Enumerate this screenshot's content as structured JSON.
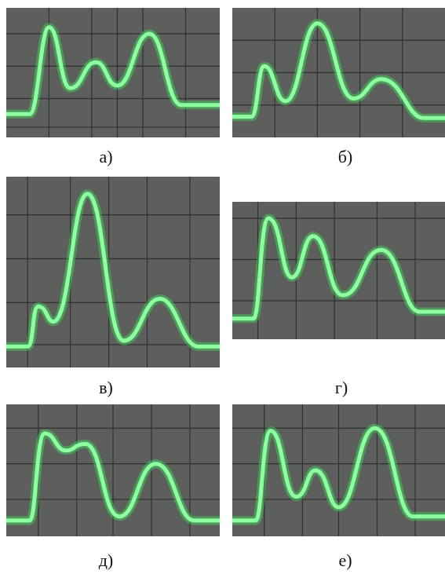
{
  "panels": [
    {
      "label": "а)"
    },
    {
      "label": "б)"
    },
    {
      "label": "в)"
    },
    {
      "label": "г)"
    },
    {
      "label": "д)"
    },
    {
      "label": "е)"
    }
  ]
}
